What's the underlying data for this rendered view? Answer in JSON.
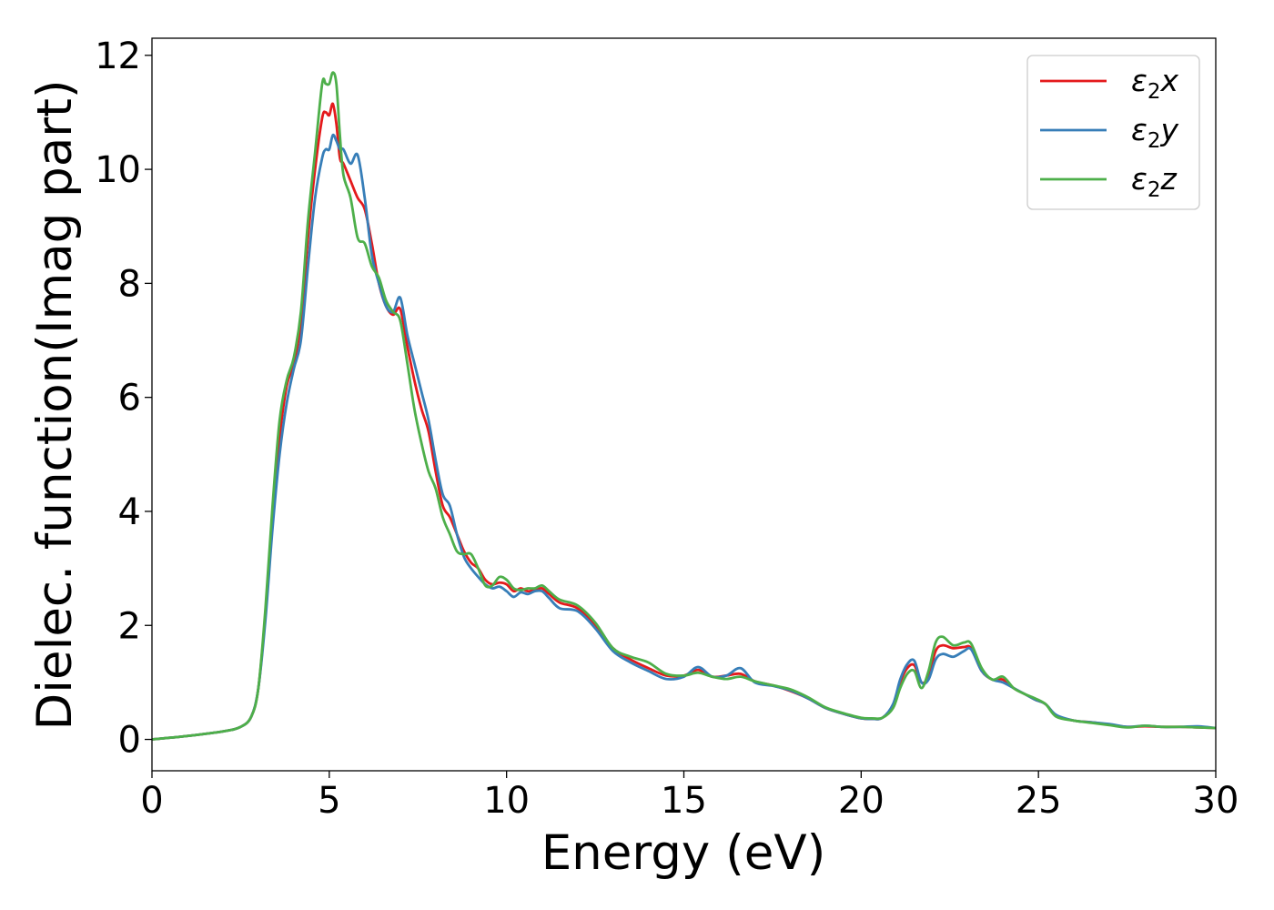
{
  "chart_data": {
    "type": "line",
    "title": "",
    "xlabel": "Energy (eV)",
    "ylabel": "Dielec. function(Imag part)",
    "xlim": [
      0,
      30
    ],
    "ylim": [
      -0.55,
      12.3
    ],
    "xticks": [
      0,
      5,
      10,
      15,
      20,
      25,
      30
    ],
    "yticks": [
      0,
      2,
      4,
      6,
      8,
      10,
      12
    ],
    "grid": false,
    "legend_position": "top-right",
    "series": [
      {
        "name": "ε₂x",
        "label_main": "ε",
        "label_sub": "2",
        "label_tail": "x",
        "color": "#e41a1c",
        "x": [
          0,
          1,
          2,
          2.5,
          2.8,
          3.0,
          3.2,
          3.4,
          3.6,
          3.8,
          4.0,
          4.2,
          4.4,
          4.6,
          4.8,
          4.9,
          5.0,
          5.1,
          5.2,
          5.3,
          5.4,
          5.6,
          5.8,
          6.0,
          6.2,
          6.4,
          6.6,
          6.8,
          7.0,
          7.2,
          7.4,
          7.6,
          7.8,
          8.0,
          8.2,
          8.4,
          8.6,
          8.8,
          9.0,
          9.2,
          9.4,
          9.6,
          9.8,
          10.0,
          10.2,
          10.4,
          10.6,
          10.8,
          11.0,
          11.2,
          11.5,
          12.0,
          12.5,
          13.0,
          13.5,
          14.0,
          14.5,
          15.0,
          15.4,
          15.8,
          16.2,
          16.6,
          17.0,
          17.5,
          18.0,
          18.5,
          19.0,
          19.5,
          20.0,
          20.3,
          20.6,
          20.9,
          21.1,
          21.3,
          21.5,
          21.7,
          21.9,
          22.1,
          22.3,
          22.6,
          22.9,
          23.1,
          23.4,
          23.7,
          24.0,
          24.3,
          24.6,
          24.9,
          25.2,
          25.5,
          26.0,
          26.5,
          27.0,
          27.5,
          28.0,
          28.5,
          29.0,
          29.5,
          30.0
        ],
        "values": [
          0,
          0.06,
          0.14,
          0.22,
          0.4,
          0.9,
          2.2,
          3.9,
          5.3,
          6.2,
          6.6,
          7.3,
          8.8,
          10.0,
          10.9,
          11.0,
          10.95,
          11.15,
          10.8,
          10.2,
          10.1,
          9.8,
          9.5,
          9.3,
          8.7,
          8.0,
          7.6,
          7.45,
          7.55,
          6.9,
          6.3,
          5.8,
          5.4,
          4.7,
          4.1,
          3.9,
          3.6,
          3.3,
          3.1,
          3.0,
          2.8,
          2.72,
          2.75,
          2.72,
          2.6,
          2.65,
          2.6,
          2.62,
          2.65,
          2.55,
          2.4,
          2.3,
          2.0,
          1.6,
          1.4,
          1.25,
          1.12,
          1.12,
          1.22,
          1.1,
          1.12,
          1.15,
          1.02,
          0.95,
          0.85,
          0.72,
          0.55,
          0.45,
          0.37,
          0.36,
          0.38,
          0.6,
          1.0,
          1.25,
          1.3,
          1.0,
          1.1,
          1.55,
          1.65,
          1.6,
          1.62,
          1.6,
          1.2,
          1.05,
          1.05,
          0.9,
          0.8,
          0.7,
          0.62,
          0.42,
          0.33,
          0.3,
          0.26,
          0.22,
          0.23,
          0.22,
          0.22,
          0.21,
          0.2
        ]
      },
      {
        "name": "ε₂y",
        "label_main": "ε",
        "label_sub": "2",
        "label_tail": "y",
        "color": "#377eb8",
        "x": [
          0,
          1,
          2,
          2.5,
          2.8,
          3.0,
          3.2,
          3.4,
          3.6,
          3.8,
          4.0,
          4.2,
          4.4,
          4.6,
          4.8,
          4.9,
          5.0,
          5.1,
          5.2,
          5.3,
          5.4,
          5.6,
          5.8,
          6.0,
          6.2,
          6.4,
          6.6,
          6.8,
          7.0,
          7.2,
          7.4,
          7.6,
          7.8,
          8.0,
          8.2,
          8.4,
          8.6,
          8.8,
          9.0,
          9.2,
          9.4,
          9.6,
          9.8,
          10.0,
          10.2,
          10.4,
          10.6,
          10.8,
          11.0,
          11.2,
          11.5,
          12.0,
          12.5,
          13.0,
          13.5,
          14.0,
          14.5,
          15.0,
          15.4,
          15.8,
          16.2,
          16.6,
          17.0,
          17.5,
          18.0,
          18.5,
          19.0,
          19.5,
          20.0,
          20.3,
          20.6,
          20.9,
          21.1,
          21.3,
          21.5,
          21.7,
          21.9,
          22.1,
          22.3,
          22.6,
          22.9,
          23.1,
          23.4,
          23.7,
          24.0,
          24.3,
          24.6,
          24.9,
          25.2,
          25.5,
          26.0,
          26.5,
          27.0,
          27.5,
          28.0,
          28.5,
          29.0,
          29.5,
          30.0
        ],
        "values": [
          0,
          0.06,
          0.14,
          0.22,
          0.4,
          0.9,
          2.1,
          3.7,
          5.0,
          5.9,
          6.5,
          7.0,
          8.3,
          9.5,
          10.2,
          10.35,
          10.35,
          10.6,
          10.5,
          10.35,
          10.35,
          10.1,
          10.25,
          9.5,
          8.5,
          8.0,
          7.6,
          7.5,
          7.75,
          7.1,
          6.6,
          6.1,
          5.6,
          4.9,
          4.3,
          4.1,
          3.6,
          3.2,
          3.0,
          2.85,
          2.72,
          2.65,
          2.68,
          2.6,
          2.5,
          2.58,
          2.55,
          2.6,
          2.6,
          2.48,
          2.3,
          2.25,
          1.95,
          1.55,
          1.35,
          1.2,
          1.06,
          1.1,
          1.27,
          1.1,
          1.12,
          1.25,
          1.0,
          0.94,
          0.86,
          0.72,
          0.55,
          0.45,
          0.37,
          0.36,
          0.38,
          0.62,
          1.05,
          1.32,
          1.38,
          1.0,
          1.05,
          1.4,
          1.5,
          1.45,
          1.55,
          1.58,
          1.2,
          1.05,
          1.0,
          0.9,
          0.8,
          0.7,
          0.62,
          0.43,
          0.33,
          0.3,
          0.27,
          0.22,
          0.24,
          0.22,
          0.22,
          0.23,
          0.2
        ]
      },
      {
        "name": "ε₂z",
        "label_main": "ε",
        "label_sub": "2",
        "label_tail": "z",
        "color": "#4daf4a",
        "x": [
          0,
          1,
          2,
          2.5,
          2.8,
          3.0,
          3.2,
          3.4,
          3.6,
          3.8,
          4.0,
          4.2,
          4.4,
          4.6,
          4.8,
          4.9,
          5.0,
          5.1,
          5.2,
          5.3,
          5.4,
          5.6,
          5.8,
          6.0,
          6.2,
          6.4,
          6.6,
          6.8,
          7.0,
          7.2,
          7.4,
          7.6,
          7.8,
          8.0,
          8.2,
          8.4,
          8.6,
          8.8,
          9.0,
          9.2,
          9.4,
          9.6,
          9.8,
          10.0,
          10.2,
          10.4,
          10.6,
          10.8,
          11.0,
          11.2,
          11.5,
          12.0,
          12.5,
          13.0,
          13.5,
          14.0,
          14.5,
          15.0,
          15.4,
          15.8,
          16.2,
          16.6,
          17.0,
          17.5,
          18.0,
          18.5,
          19.0,
          19.5,
          20.0,
          20.3,
          20.6,
          20.9,
          21.1,
          21.3,
          21.5,
          21.7,
          21.9,
          22.1,
          22.3,
          22.6,
          22.9,
          23.1,
          23.4,
          23.7,
          24.0,
          24.3,
          24.6,
          24.9,
          25.2,
          25.5,
          26.0,
          26.5,
          27.0,
          27.5,
          28.0,
          28.5,
          29.0,
          29.5,
          30.0
        ],
        "values": [
          0,
          0.06,
          0.14,
          0.22,
          0.4,
          0.9,
          2.3,
          4.1,
          5.6,
          6.3,
          6.7,
          7.5,
          9.1,
          10.3,
          11.5,
          11.5,
          11.5,
          11.7,
          11.5,
          10.6,
          9.9,
          9.5,
          8.8,
          8.7,
          8.3,
          8.1,
          7.7,
          7.5,
          7.35,
          6.6,
          5.8,
          5.2,
          4.7,
          4.4,
          3.9,
          3.6,
          3.3,
          3.25,
          3.25,
          3.0,
          2.7,
          2.7,
          2.85,
          2.8,
          2.65,
          2.62,
          2.65,
          2.65,
          2.7,
          2.6,
          2.45,
          2.35,
          2.05,
          1.6,
          1.45,
          1.35,
          1.15,
          1.12,
          1.17,
          1.1,
          1.06,
          1.1,
          1.02,
          0.95,
          0.88,
          0.74,
          0.56,
          0.46,
          0.38,
          0.37,
          0.38,
          0.55,
          0.9,
          1.15,
          1.2,
          0.9,
          1.2,
          1.7,
          1.8,
          1.65,
          1.7,
          1.68,
          1.25,
          1.05,
          1.1,
          0.9,
          0.8,
          0.72,
          0.62,
          0.4,
          0.33,
          0.29,
          0.25,
          0.21,
          0.24,
          0.22,
          0.22,
          0.21,
          0.2
        ]
      }
    ]
  }
}
